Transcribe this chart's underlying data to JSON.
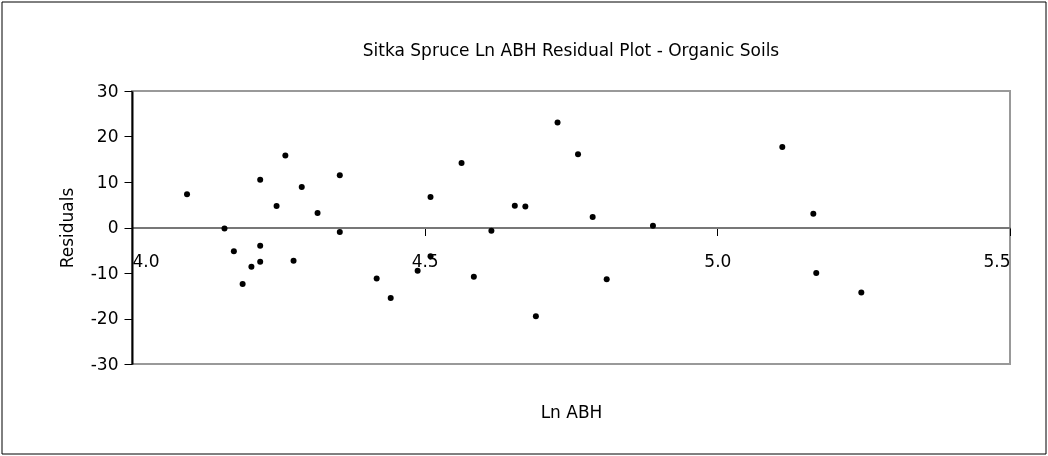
{
  "chart_data": {
    "type": "scatter",
    "title": "Sitka Spruce Ln ABH Residual Plot - Organic Soils",
    "xlabel": "Ln ABH",
    "ylabel": "Residuals",
    "x": [
      4.094,
      4.158,
      4.174,
      4.189,
      4.204,
      4.219,
      4.219,
      4.219,
      4.247,
      4.262,
      4.276,
      4.29,
      4.317,
      4.355,
      4.355,
      4.418,
      4.442,
      4.488,
      4.51,
      4.51,
      4.563,
      4.584,
      4.614,
      4.654,
      4.672,
      4.69,
      4.727,
      4.762,
      4.787,
      4.811,
      4.89,
      5.111,
      5.164,
      5.169,
      5.246
    ],
    "series": [
      {
        "color": "#000000",
        "values": [
          7.3,
          -0.2,
          -5.2,
          -12.4,
          -8.6,
          10.5,
          -4.0,
          -7.5,
          4.7,
          15.8,
          -7.3,
          8.9,
          3.2,
          11.5,
          -1.0,
          -11.2,
          -15.5,
          -9.5,
          6.7,
          -6.3,
          14.2,
          -10.8,
          -0.7,
          4.8,
          4.6,
          -19.5,
          23.1,
          16.1,
          2.3,
          -11.4,
          0.4,
          17.7,
          3.0,
          -10.0,
          -14.3
        ]
      }
    ],
    "xlim": [
      4.0,
      5.5
    ],
    "xticks": [
      {
        "value": 4.0,
        "label": "4.0"
      },
      4.5,
      {
        "value": 5.0,
        "label": "5.0"
      },
      5.5
    ],
    "ylim": [
      -30,
      30
    ],
    "yticks": [
      -30,
      -20,
      -10,
      0,
      10,
      20,
      30
    ],
    "grid": false,
    "legend": false,
    "marker": "circle"
  }
}
